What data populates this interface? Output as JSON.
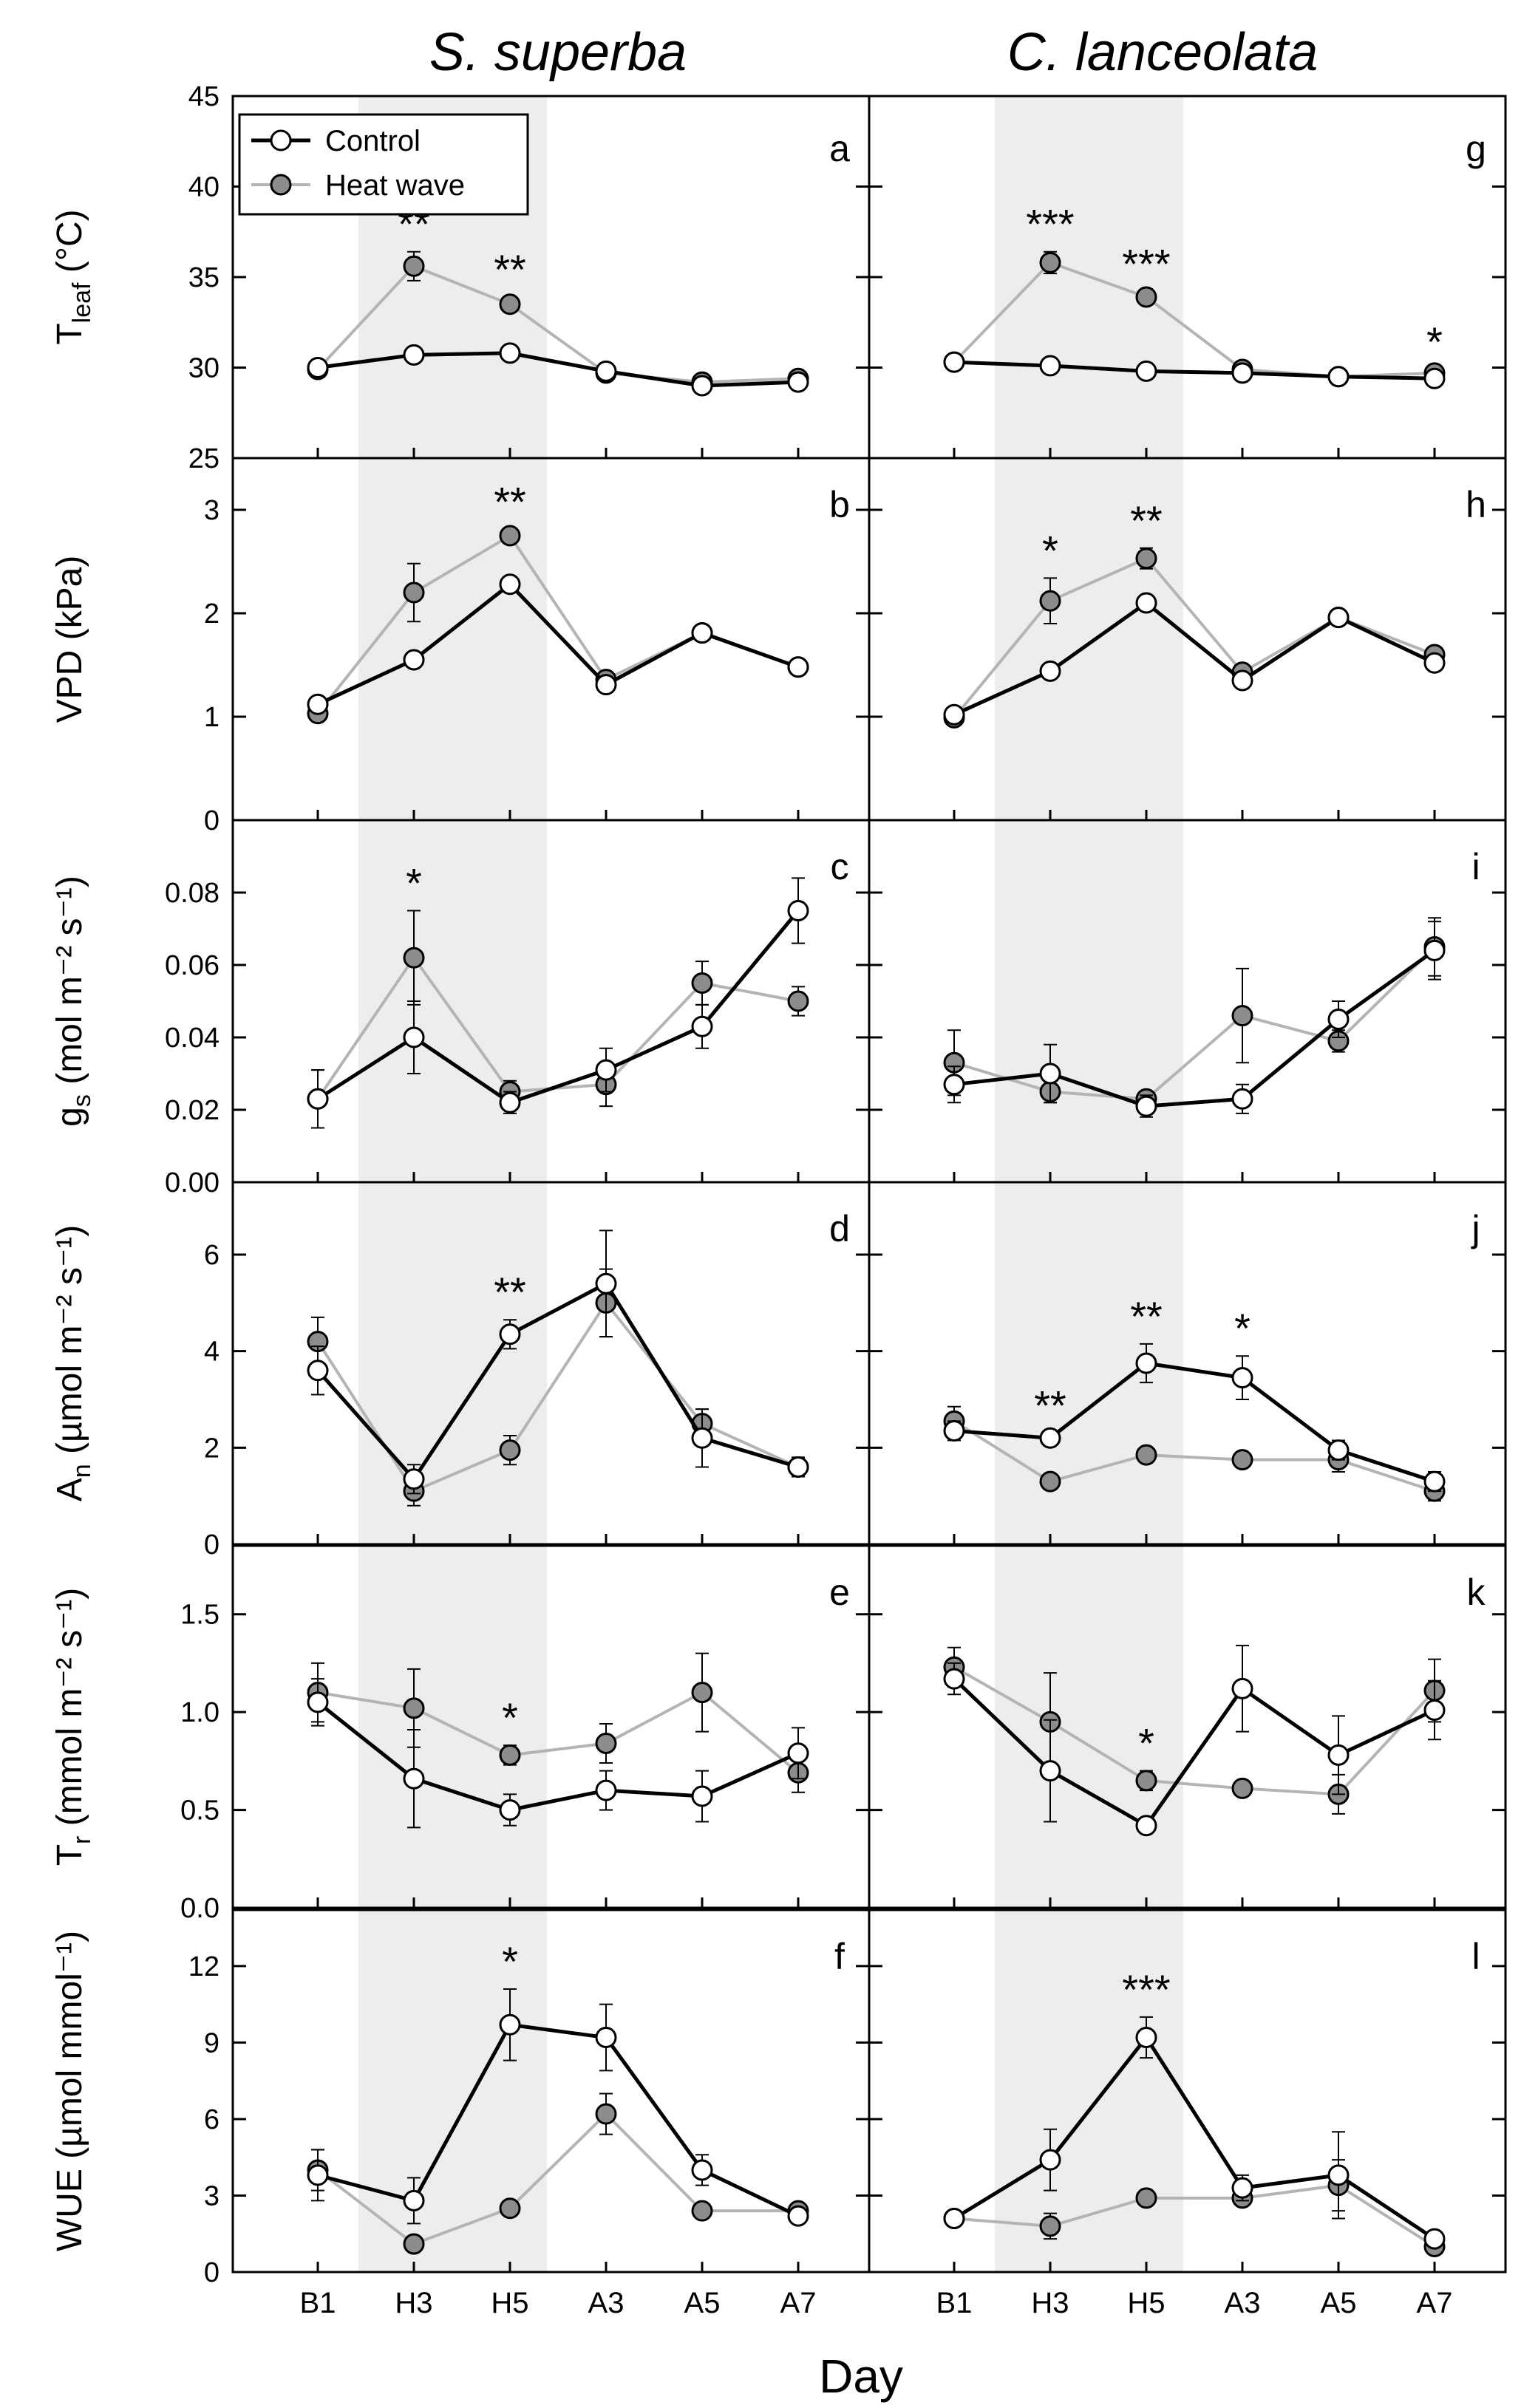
{
  "titles": [
    "S. superba",
    "C. lanceolata"
  ],
  "xlabel": "Day",
  "categories": [
    "B1",
    "H3",
    "H5",
    "A3",
    "A5",
    "A7"
  ],
  "legend": {
    "control": "Control",
    "heat": "Heat wave",
    "position": "top-left"
  },
  "colors": {
    "control_line": "#000000",
    "control_marker": "#ffffff",
    "heat_line": "#b4b4b4",
    "heat_marker": "#8c8c8c",
    "shade": "#ededed"
  },
  "shaded_days": [
    "H3",
    "H5"
  ],
  "rows": [
    {
      "ylabel": {
        "main": "T",
        "sub": "leaf",
        "rest": " (°C)"
      },
      "ylim": [
        25,
        45
      ],
      "ticks": [
        "25",
        "30",
        "35",
        "40",
        "45"
      ]
    },
    {
      "ylabel": {
        "main": "VPD (kPa)",
        "sub": "",
        "rest": ""
      },
      "ylim": [
        0,
        3.5
      ],
      "ticks": [
        "0",
        "1",
        "2",
        "3"
      ]
    },
    {
      "ylabel": {
        "main": "g",
        "sub": "s",
        "rest": " (mol m⁻² s⁻¹)"
      },
      "ylim": [
        0,
        0.1
      ],
      "ticks": [
        "0.00",
        "0.02",
        "0.04",
        "0.06",
        "0.08"
      ]
    },
    {
      "ylabel": {
        "main": "A",
        "sub": "n",
        "rest": " (µmol m⁻² s⁻¹)"
      },
      "ylim": [
        0,
        7.5
      ],
      "ticks": [
        "0",
        "2",
        "4",
        "6"
      ]
    },
    {
      "ylabel": {
        "main": "T",
        "sub": "r",
        "rest": " (mmol m⁻² s⁻¹)"
      },
      "ylim": [
        0,
        1.85
      ],
      "ticks": [
        "0.0",
        "0.5",
        "1.0",
        "1.5"
      ]
    },
    {
      "ylabel": {
        "main": "WUE (µmol mmol⁻¹)",
        "sub": "",
        "rest": ""
      },
      "ylim": [
        0,
        14.2
      ],
      "ticks": [
        "0",
        "3",
        "6",
        "9",
        "12"
      ]
    }
  ],
  "chart_data": [
    {
      "type": "line",
      "panel": "a",
      "species": "S. superba",
      "variable": "Tleaf",
      "series": [
        {
          "name": "Control",
          "values": [
            30.0,
            30.7,
            30.8,
            29.8,
            29.0,
            29.2
          ],
          "errors": [
            0.3,
            0.3,
            0.3,
            0.2,
            0.3,
            0.3
          ]
        },
        {
          "name": "Heat wave",
          "values": [
            29.9,
            35.6,
            33.5,
            29.7,
            29.2,
            29.4
          ],
          "errors": [
            0.3,
            0.8,
            0.4,
            0.2,
            0.3,
            0.3
          ]
        }
      ],
      "stars": [
        "",
        "**",
        "**",
        "",
        "",
        ""
      ]
    },
    {
      "type": "line",
      "panel": "g",
      "species": "C. lanceolata",
      "variable": "Tleaf",
      "series": [
        {
          "name": "Control",
          "values": [
            30.3,
            30.1,
            29.8,
            29.7,
            29.5,
            29.4
          ],
          "errors": [
            0.2,
            0.2,
            0.2,
            0.2,
            0.2,
            0.2
          ]
        },
        {
          "name": "Heat wave",
          "values": [
            30.3,
            35.8,
            33.9,
            29.9,
            29.5,
            29.7
          ],
          "errors": [
            0.2,
            0.6,
            0.3,
            0.2,
            0.2,
            0.2
          ]
        }
      ],
      "stars": [
        "",
        "***",
        "***",
        "",
        "",
        "*"
      ]
    },
    {
      "type": "line",
      "panel": "b",
      "species": "S. superba",
      "variable": "VPD",
      "series": [
        {
          "name": "Control",
          "values": [
            1.12,
            1.55,
            2.28,
            1.31,
            1.81,
            1.48
          ],
          "errors": [
            0.05,
            0.05,
            0.06,
            0.05,
            0.04,
            0.04
          ]
        },
        {
          "name": "Heat wave",
          "values": [
            1.03,
            2.2,
            2.75,
            1.36,
            1.81,
            1.48
          ],
          "errors": [
            0.05,
            0.28,
            0.06,
            0.05,
            0.04,
            0.04
          ]
        }
      ],
      "stars": [
        "",
        "",
        "**",
        "",
        "",
        ""
      ]
    },
    {
      "type": "line",
      "panel": "h",
      "species": "C. lanceolata",
      "variable": "VPD",
      "series": [
        {
          "name": "Control",
          "values": [
            1.02,
            1.44,
            2.1,
            1.35,
            1.96,
            1.52
          ],
          "errors": [
            0.05,
            0.05,
            0.06,
            0.05,
            0.04,
            0.05
          ]
        },
        {
          "name": "Heat wave",
          "values": [
            0.99,
            2.12,
            2.53,
            1.43,
            1.96,
            1.6
          ],
          "errors": [
            0.05,
            0.22,
            0.1,
            0.05,
            0.04,
            0.05
          ]
        }
      ],
      "stars": [
        "",
        "*",
        "**",
        "",
        "",
        ""
      ]
    },
    {
      "type": "line",
      "panel": "c",
      "species": "S. superba",
      "variable": "gs",
      "series": [
        {
          "name": "Control",
          "values": [
            0.023,
            0.04,
            0.022,
            0.031,
            0.043,
            0.075
          ],
          "errors": [
            0.008,
            0.01,
            0.003,
            0.006,
            0.006,
            0.009
          ]
        },
        {
          "name": "Heat wave",
          "values": [
            0.023,
            0.062,
            0.025,
            0.027,
            0.055,
            0.05
          ],
          "errors": [
            0.008,
            0.013,
            0.003,
            0.006,
            0.006,
            0.004
          ]
        }
      ],
      "stars": [
        "",
        "*",
        "",
        "",
        "",
        ""
      ]
    },
    {
      "type": "line",
      "panel": "i",
      "species": "C. lanceolata",
      "variable": "gs",
      "series": [
        {
          "name": "Control",
          "values": [
            0.027,
            0.03,
            0.021,
            0.023,
            0.045,
            0.064
          ],
          "errors": [
            0.005,
            0.008,
            0.003,
            0.004,
            0.005,
            0.008
          ]
        },
        {
          "name": "Heat wave",
          "values": [
            0.033,
            0.025,
            0.023,
            0.046,
            0.039,
            0.065
          ],
          "errors": [
            0.009,
            0.003,
            0.002,
            0.013,
            0.003,
            0.008
          ]
        }
      ],
      "stars": [
        "",
        "",
        "",
        "",
        "",
        ""
      ]
    },
    {
      "type": "line",
      "panel": "d",
      "species": "S. superba",
      "variable": "An",
      "series": [
        {
          "name": "Control",
          "values": [
            3.6,
            1.35,
            4.35,
            5.4,
            2.2,
            1.6
          ],
          "errors": [
            0.5,
            0.3,
            0.3,
            1.1,
            0.6,
            0.2
          ]
        },
        {
          "name": "Heat wave",
          "values": [
            4.2,
            1.1,
            1.95,
            5.0,
            2.5,
            1.6
          ],
          "errors": [
            0.5,
            0.3,
            0.3,
            0.7,
            0.3,
            0.2
          ]
        }
      ],
      "stars": [
        "",
        "",
        "**",
        "",
        "",
        ""
      ]
    },
    {
      "type": "line",
      "panel": "j",
      "species": "C. lanceolata",
      "variable": "An",
      "series": [
        {
          "name": "Control",
          "values": [
            2.35,
            2.2,
            3.75,
            3.45,
            1.95,
            1.3
          ],
          "errors": [
            0.2,
            0.1,
            0.4,
            0.45,
            0.2,
            0.2
          ]
        },
        {
          "name": "Heat wave",
          "values": [
            2.55,
            1.3,
            1.85,
            1.75,
            1.75,
            1.1
          ],
          "errors": [
            0.3,
            0.1,
            0.1,
            0.1,
            0.25,
            0.2
          ]
        }
      ],
      "stars": [
        "",
        "**",
        "**",
        "*",
        "",
        ""
      ]
    },
    {
      "type": "line",
      "panel": "e",
      "species": "S. superba",
      "variable": "Tr",
      "series": [
        {
          "name": "Control",
          "values": [
            1.05,
            0.66,
            0.5,
            0.6,
            0.57,
            0.79
          ],
          "errors": [
            0.12,
            0.25,
            0.08,
            0.1,
            0.13,
            0.13
          ]
        },
        {
          "name": "Heat wave",
          "values": [
            1.1,
            1.02,
            0.78,
            0.84,
            1.1,
            0.69
          ],
          "errors": [
            0.15,
            0.2,
            0.05,
            0.1,
            0.2,
            0.1
          ]
        }
      ],
      "stars": [
        "",
        "",
        "*",
        "",
        "",
        ""
      ]
    },
    {
      "type": "line",
      "panel": "k",
      "species": "C. lanceolata",
      "variable": "Tr",
      "series": [
        {
          "name": "Control",
          "values": [
            1.17,
            0.7,
            0.42,
            1.12,
            0.78,
            1.01
          ],
          "errors": [
            0.08,
            0.26,
            0.04,
            0.22,
            0.2,
            0.15
          ]
        },
        {
          "name": "Heat wave",
          "values": [
            1.23,
            0.95,
            0.65,
            0.61,
            0.58,
            1.11
          ],
          "errors": [
            0.1,
            0.25,
            0.05,
            0.03,
            0.1,
            0.16
          ]
        }
      ],
      "stars": [
        "",
        "",
        "*",
        "",
        "",
        ""
      ]
    },
    {
      "type": "line",
      "panel": "f",
      "species": "S. superba",
      "variable": "WUE",
      "series": [
        {
          "name": "Control",
          "values": [
            3.8,
            2.8,
            9.7,
            9.2,
            4.0,
            2.2
          ],
          "errors": [
            1.0,
            0.9,
            1.4,
            1.3,
            0.6,
            0.3
          ]
        },
        {
          "name": "Heat wave",
          "values": [
            4.0,
            1.1,
            2.5,
            6.2,
            2.4,
            2.4
          ],
          "errors": [
            0.8,
            0.3,
            0.2,
            0.8,
            0.2,
            0.3
          ]
        }
      ],
      "stars": [
        "",
        "",
        "*",
        "",
        "",
        ""
      ]
    },
    {
      "type": "line",
      "panel": "l",
      "species": "C. lanceolata",
      "variable": "WUE",
      "series": [
        {
          "name": "Control",
          "values": [
            2.1,
            4.4,
            9.2,
            3.3,
            3.8,
            1.3
          ],
          "errors": [
            0.2,
            1.2,
            0.8,
            0.5,
            1.7,
            0.3
          ]
        },
        {
          "name": "Heat wave",
          "values": [
            2.1,
            1.8,
            2.9,
            2.9,
            3.4,
            1.0
          ],
          "errors": [
            0.2,
            0.5,
            0.2,
            0.3,
            1.0,
            0.2
          ]
        }
      ],
      "stars": [
        "",
        "",
        "***",
        "",
        "",
        ""
      ]
    }
  ]
}
